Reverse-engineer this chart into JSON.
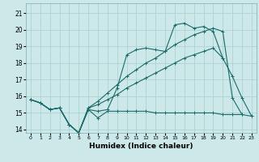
{
  "title": "",
  "xlabel": "Humidex (Indice chaleur)",
  "bg_color": "#cce8e8",
  "grid_color": "#aacece",
  "line_color": "#1a6b6b",
  "xlim": [
    -0.5,
    23.5
  ],
  "ylim": [
    13.8,
    21.6
  ],
  "yticks": [
    14,
    15,
    16,
    17,
    18,
    19,
    20,
    21
  ],
  "xticks": [
    0,
    1,
    2,
    3,
    4,
    5,
    6,
    7,
    8,
    9,
    10,
    11,
    12,
    13,
    14,
    15,
    16,
    17,
    18,
    19,
    20,
    21,
    22,
    23
  ],
  "series": [
    {
      "x": [
        0,
        1,
        2,
        3,
        4,
        5,
        6,
        7,
        8,
        9,
        10,
        11,
        12,
        13,
        14,
        15,
        16,
        17,
        18,
        19,
        20,
        21,
        22,
        23
      ],
      "y": [
        15.8,
        15.6,
        15.2,
        15.3,
        14.3,
        13.8,
        15.2,
        15.1,
        15.2,
        16.5,
        18.5,
        18.8,
        18.9,
        18.8,
        18.7,
        20.3,
        20.4,
        20.1,
        20.2,
        19.9,
        18.3,
        17.2,
        15.9,
        14.8
      ]
    },
    {
      "x": [
        0,
        1,
        2,
        3,
        4,
        5,
        6,
        7,
        8,
        9,
        10,
        11,
        12,
        13,
        14,
        15,
        16,
        17,
        18,
        19,
        20,
        21,
        22,
        23
      ],
      "y": [
        15.8,
        15.6,
        15.2,
        15.3,
        14.3,
        13.8,
        15.2,
        14.7,
        15.1,
        15.1,
        15.1,
        15.1,
        15.1,
        15.0,
        15.0,
        15.0,
        15.0,
        15.0,
        15.0,
        15.0,
        14.9,
        14.9,
        14.9,
        14.8
      ]
    },
    {
      "x": [
        0,
        1,
        2,
        3,
        4,
        5,
        6,
        7,
        8,
        9,
        10,
        11,
        12,
        13,
        14,
        15,
        16,
        17,
        18,
        19,
        20,
        21,
        22,
        23
      ],
      "y": [
        15.8,
        15.6,
        15.2,
        15.3,
        14.3,
        13.8,
        15.3,
        15.7,
        16.2,
        16.7,
        17.2,
        17.6,
        18.0,
        18.3,
        18.7,
        19.1,
        19.4,
        19.7,
        19.9,
        20.1,
        19.9,
        15.9,
        14.9,
        null
      ]
    },
    {
      "x": [
        0,
        1,
        2,
        3,
        4,
        5,
        6,
        7,
        8,
        9,
        10,
        11,
        12,
        13,
        14,
        15,
        16,
        17,
        18,
        19,
        20
      ],
      "y": [
        15.8,
        15.6,
        15.2,
        15.3,
        14.3,
        13.8,
        15.3,
        15.5,
        15.8,
        16.1,
        16.5,
        16.8,
        17.1,
        17.4,
        17.7,
        18.0,
        18.3,
        18.5,
        18.7,
        18.9,
        18.3
      ]
    }
  ]
}
